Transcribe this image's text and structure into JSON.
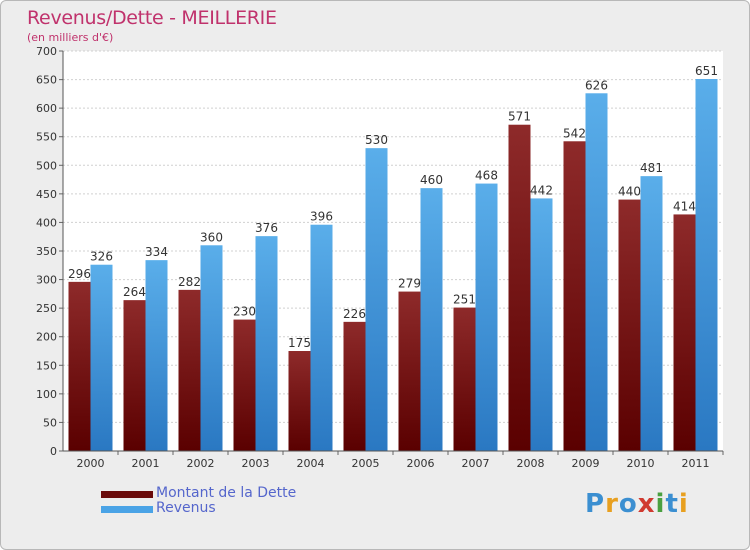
{
  "title": "Revenus/Dette - MEILLERIE",
  "subtitle": "(en milliers d'€)",
  "brand": {
    "text": "Proxiti",
    "letter_colors": [
      "#3b8fd1",
      "#e8a020",
      "#3b8fd1",
      "#d03a30",
      "#4aa040",
      "#3b8fd1",
      "#e8a020"
    ]
  },
  "colors": {
    "background": "#ededed",
    "plot_background": "#ffffff",
    "dette": "#8b1a1a",
    "revenus": "#4aa3e6",
    "title": "#c0326c",
    "legend_text": "#5566cc"
  },
  "chart_data": {
    "type": "bar",
    "categories": [
      "2000",
      "2001",
      "2002",
      "2003",
      "2004",
      "2005",
      "2006",
      "2007",
      "2008",
      "2009",
      "2010",
      "2011"
    ],
    "series": [
      {
        "name": "Montant de la Dette",
        "values": [
          296,
          264,
          282,
          230,
          175,
          226,
          279,
          251,
          571,
          542,
          440,
          414
        ]
      },
      {
        "name": "Revenus",
        "values": [
          326,
          334,
          360,
          376,
          396,
          530,
          460,
          468,
          442,
          626,
          481,
          651
        ]
      }
    ],
    "ylim": [
      0,
      700
    ],
    "yticks": [
      0,
      50,
      100,
      150,
      200,
      250,
      300,
      350,
      400,
      450,
      500,
      550,
      600,
      650,
      700
    ],
    "grid": true,
    "legend": "bottom-left"
  }
}
